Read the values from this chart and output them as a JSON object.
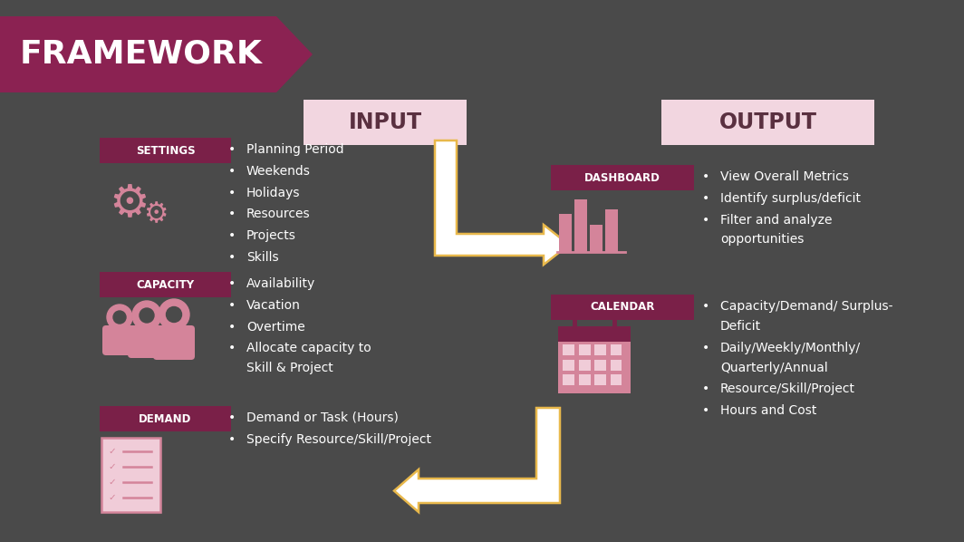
{
  "bg_color": "#4a4a4a",
  "framework_arrow_color": "#8B2252",
  "framework_text": "FRAMEWORK",
  "input_box_color": "#f2d6e0",
  "input_text": "INPUT",
  "output_box_color": "#f2d6e0",
  "output_text": "OUTPUT",
  "label_bg_color": "#7a2048",
  "label_text_color": "#ffffff",
  "icon_color": "#d4849a",
  "text_color": "#ffffff",
  "arrow_edge_color": "#e8b84b",
  "arrow_fill_color": "#ffffff",
  "settings_label": "SETTINGS",
  "settings_items": [
    "Planning Period",
    "Weekends",
    "Holidays",
    "Resources",
    "Projects",
    "Skills"
  ],
  "capacity_label": "CAPACITY",
  "capacity_items": [
    "Availability",
    "Vacation",
    "Overtime",
    "Allocate capacity to\nSkill & Project"
  ],
  "demand_label": "DEMAND",
  "demand_items": [
    "Demand or Task (Hours)",
    "Specify Resource/Skill/Project"
  ],
  "dashboard_label": "DASHBOARD",
  "dashboard_items": [
    "View Overall Metrics",
    "Identify surplus/deficit",
    "Filter and analyze\nopportunities"
  ],
  "calendar_label": "CALENDAR",
  "calendar_items": [
    "Capacity/Demand/ Surplus-\nDeficit",
    "Daily/Weekly/Monthly/\nQuarterly/Annual",
    "Resource/Skill/Project",
    "Hours and Cost"
  ]
}
